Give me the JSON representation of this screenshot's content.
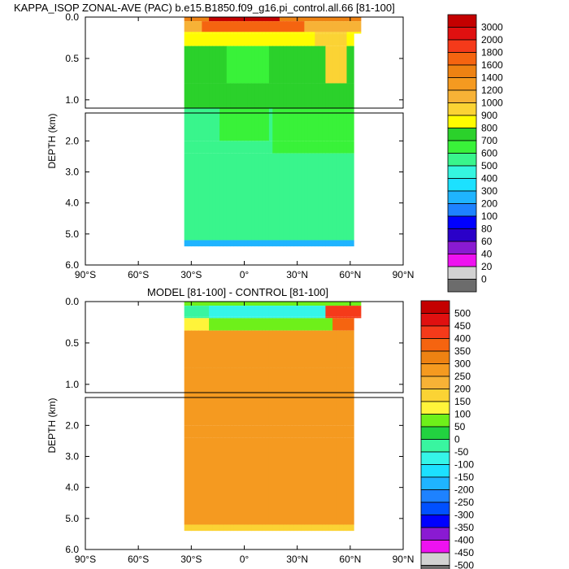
{
  "chart_data": [
    {
      "type": "heatmap",
      "subtype": "depth-latitude filled contour section",
      "title": "KAPPA_ISOP ZONAL-AVE (PAC) b.e15.B1850.f09_g16.pi_control.all.66 [81-100]",
      "ylabel": "DEPTH (km)",
      "xlabel": "",
      "x_ticks": [
        "90°S",
        "60°S",
        "30°S",
        "0°",
        "30°N",
        "60°N",
        "90°N"
      ],
      "xlim": [
        -90,
        90
      ],
      "y_ticks_upper": [
        "0.0",
        "0.5",
        "1.0"
      ],
      "y_ticks_lower": [
        "2.0",
        "3.0",
        "4.0",
        "5.0",
        "6.0"
      ],
      "ylim_upper": [
        0,
        1.1
      ],
      "ylim_lower": [
        1.1,
        6.0
      ],
      "y_reversed": true,
      "colorbar_levels": [
        "3000",
        "2000",
        "1800",
        "1600",
        "1400",
        "1200",
        "1000",
        "900",
        "800",
        "700",
        "600",
        "500",
        "400",
        "300",
        "200",
        "100",
        "80",
        "60",
        "40",
        "20",
        "0"
      ],
      "colorbar_colors": [
        "#c40000",
        "#e01010",
        "#f53a1a",
        "#f56410",
        "#ee8212",
        "#f59a20",
        "#f7b236",
        "#fbd334",
        "#fffc00",
        "#2bd12b",
        "#39f239",
        "#39f58c",
        "#35f5e0",
        "#1ce1ff",
        "#1fb4ff",
        "#1e82ff",
        "#0000ff",
        "#2a00c8",
        "#8a1ad2",
        "#ee12f0",
        "#d2d2d2",
        "#6c6c6c"
      ],
      "field_summary": "Values 400-600 (cyan) fill the deep Pacific below ~1 km; 600-900 (green/yellow) in the upper 1 km with maximum 1000-2000 near the surface; land/no-data south of ~34°S and north of ~62°N"
    },
    {
      "type": "heatmap",
      "subtype": "depth-latitude filled contour section",
      "title": "MODEL [81-100] - CONTROL [81-100]",
      "ylabel": "DEPTH (km)",
      "xlabel": "",
      "x_ticks": [
        "90°S",
        "60°S",
        "30°S",
        "0°",
        "30°N",
        "60°N",
        "90°N"
      ],
      "xlim": [
        -90,
        90
      ],
      "y_ticks_upper": [
        "0.0",
        "0.5",
        "1.0"
      ],
      "y_ticks_lower": [
        "2.0",
        "3.0",
        "4.0",
        "5.0",
        "6.0"
      ],
      "ylim_upper": [
        0,
        1.1
      ],
      "ylim_lower": [
        1.1,
        6.0
      ],
      "y_reversed": true,
      "colorbar_levels": [
        "500",
        "450",
        "400",
        "350",
        "300",
        "250",
        "200",
        "150",
        "100",
        "50",
        "0",
        "-50",
        "-100",
        "-150",
        "-200",
        "-250",
        "-300",
        "-350",
        "-400",
        "-450",
        "-500"
      ],
      "colorbar_colors": [
        "#c40000",
        "#e01010",
        "#f53a1a",
        "#f56410",
        "#ee8212",
        "#f59a20",
        "#f7b236",
        "#fbd334",
        "#fff43a",
        "#6ef01a",
        "#22d240",
        "#39f5a0",
        "#35f5e8",
        "#1ce1ff",
        "#1fb4ff",
        "#1e82ff",
        "#0050ff",
        "#0000ff",
        "#8a1ad2",
        "#ee12f0",
        "#d2d2d2",
        "#6c6c6c"
      ],
      "field_summary": "Difference mostly 250-300 (orange) throughout the water column; negative values (cyan/green/blue) in the upper ~0.3 km; 350-500 (red) near the surface at ~60°N"
    }
  ]
}
